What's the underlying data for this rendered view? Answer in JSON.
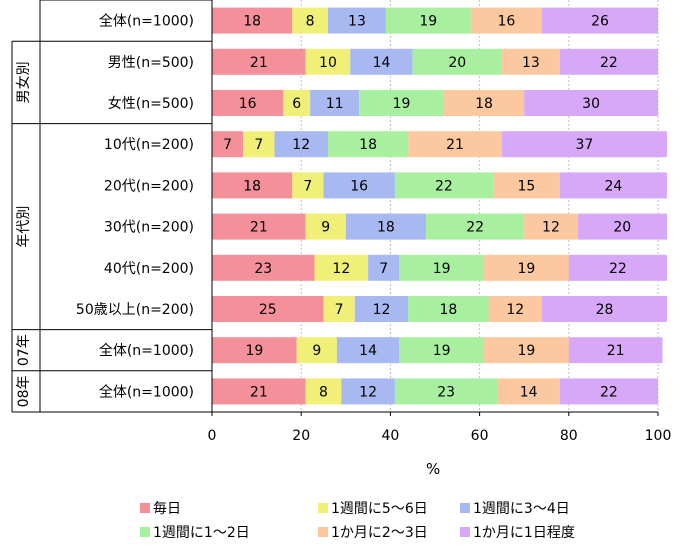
{
  "chart_data": {
    "type": "bar",
    "orientation": "horizontal",
    "stacked": "percent",
    "categories": [
      "全体(n=1000)",
      "男性(n=500)",
      "女性(n=500)",
      "10代(n=200)",
      "20代(n=200)",
      "30代(n=200)",
      "40代(n=200)",
      "50歳以上(n=200)",
      "全体(n=1000)",
      "全体(n=1000)"
    ],
    "groups": [
      {
        "label": "",
        "rows": [
          0
        ]
      },
      {
        "label": "男女別",
        "rows": [
          1,
          2
        ]
      },
      {
        "label": "年代別",
        "rows": [
          3,
          4,
          5,
          6,
          7
        ]
      },
      {
        "label": "07年",
        "rows": [
          8
        ]
      },
      {
        "label": "08年",
        "rows": [
          9
        ]
      }
    ],
    "series": [
      {
        "name": "毎日",
        "color": "#f4909a",
        "values": [
          18,
          21,
          16,
          7,
          18,
          21,
          23,
          25,
          19,
          21
        ]
      },
      {
        "name": "1週間に5～6日",
        "color": "#f0f078",
        "values": [
          8,
          10,
          6,
          7,
          7,
          9,
          12,
          7,
          9,
          8
        ]
      },
      {
        "name": "1週間に3～4日",
        "color": "#a8b8f0",
        "values": [
          13,
          14,
          11,
          12,
          16,
          18,
          7,
          12,
          14,
          12
        ]
      },
      {
        "name": "1週間に1～2日",
        "color": "#a8f0a0",
        "values": [
          19,
          20,
          19,
          18,
          22,
          22,
          19,
          18,
          19,
          23
        ]
      },
      {
        "name": "1か月に2～3日",
        "color": "#fcc8a0",
        "values": [
          16,
          13,
          18,
          21,
          15,
          12,
          19,
          12,
          19,
          14
        ]
      },
      {
        "name": "1か月に1日程度",
        "color": "#d8a8f8",
        "values": [
          26,
          22,
          30,
          37,
          24,
          20,
          22,
          28,
          21,
          22
        ]
      }
    ],
    "xlabel": "%",
    "ylabel": "",
    "xlim": [
      0,
      100
    ],
    "xticks": [
      0,
      20,
      40,
      60,
      80,
      100
    ],
    "grid": true,
    "legend_position": "bottom"
  }
}
